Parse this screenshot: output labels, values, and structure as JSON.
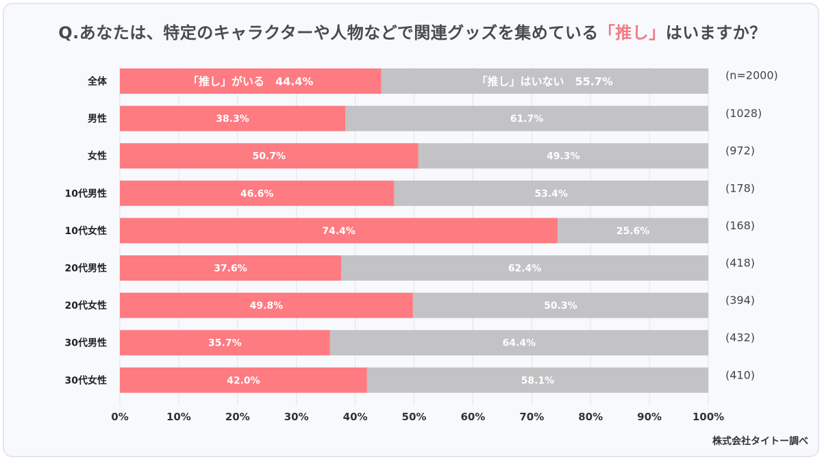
{
  "title": {
    "prefix": "Q.あなたは、特定のキャラクターや人物などで関連グッズを集めている",
    "highlight": "「推し」",
    "suffix": "はいますか？"
  },
  "source": "株式会社タイトー調べ",
  "colors": {
    "yes": "#fe7b82",
    "no": "#c3c2c4",
    "grid": "#dfe3ea",
    "highlight": "#f07b84"
  },
  "chart_data": {
    "type": "bar",
    "orientation": "horizontal",
    "stacked": true,
    "categories": [
      "全体",
      "男性",
      "女性",
      "10代男性",
      "10代女性",
      "20代男性",
      "20代女性",
      "30代男性",
      "30代女性"
    ],
    "sample_sizes": [
      "(n=2000)",
      "(1028)",
      "(972)",
      "(178)",
      "(168)",
      "(418)",
      "(394)",
      "(432)",
      "(410)"
    ],
    "series": [
      {
        "name": "「推し」がいる",
        "values": [
          44.4,
          38.3,
          50.7,
          46.6,
          74.4,
          37.6,
          49.8,
          35.7,
          42.0
        ],
        "labels": [
          "「推し」がいる　44.4%",
          "38.3%",
          "50.7%",
          "46.6%",
          "74.4%",
          "37.6%",
          "49.8%",
          "35.7%",
          "42.0%"
        ]
      },
      {
        "name": "「推し」はいない",
        "values": [
          55.7,
          61.7,
          49.3,
          53.4,
          25.6,
          62.4,
          50.3,
          64.4,
          58.1
        ],
        "labels": [
          "「推し」はいない　55.7%",
          "61.7%",
          "49.3%",
          "53.4%",
          "25.6%",
          "62.4%",
          "50.3%",
          "64.4%",
          "58.1%"
        ]
      }
    ],
    "xlim": [
      0,
      100
    ],
    "xticks": [
      "0%",
      "10%",
      "20%",
      "30%",
      "40%",
      "50%",
      "60%",
      "70%",
      "80%",
      "90%",
      "100%"
    ],
    "grid": true
  }
}
